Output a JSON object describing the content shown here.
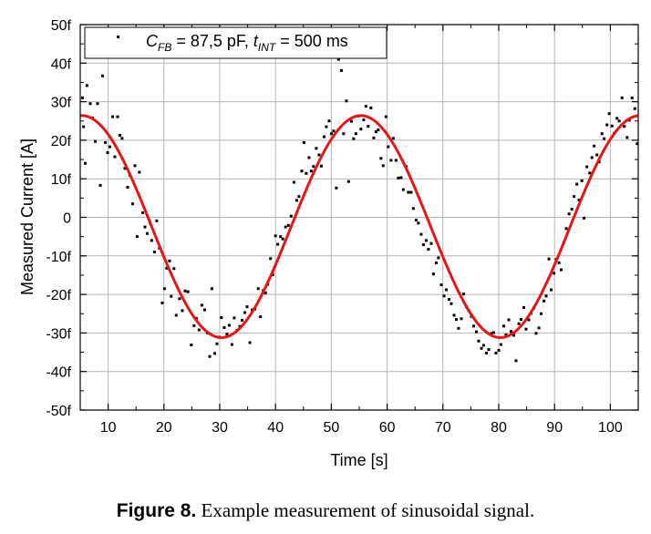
{
  "chart_data": {
    "type": "scatter",
    "xlabel": "Time [s]",
    "ylabel": "Measured Current [A]",
    "xlim": [
      5,
      105
    ],
    "ylim": [
      -50,
      50
    ],
    "x_ticks": [
      10,
      20,
      30,
      40,
      50,
      60,
      70,
      80,
      90,
      100
    ],
    "y_ticks": [
      {
        "value": -50,
        "label": "-50f"
      },
      {
        "value": -40,
        "label": "-40f"
      },
      {
        "value": -30,
        "label": "-30f"
      },
      {
        "value": -20,
        "label": "-20f"
      },
      {
        "value": -10,
        "label": "-10f"
      },
      {
        "value": 0,
        "label": "0"
      },
      {
        "value": 10,
        "label": "10f"
      },
      {
        "value": 20,
        "label": "20f"
      },
      {
        "value": 30,
        "label": "30f"
      },
      {
        "value": 40,
        "label": "40f"
      },
      {
        "value": 50,
        "label": "50f"
      }
    ],
    "grid": true,
    "legend": {
      "placement": "top-left",
      "text": {
        "C": "C",
        "c_sub": "FB",
        "mid": " = 87,5 pF, ",
        "t": "t",
        "t_sub": "INT",
        "end": " = 500 ms"
      }
    },
    "series": [
      {
        "kind": "points",
        "color": "#000000",
        "points": [
          [
            5.4,
            31.0
          ],
          [
            5.6,
            23.5
          ],
          [
            5.9,
            14.0
          ],
          [
            6.2,
            34.2
          ],
          [
            6.8,
            29.5
          ],
          [
            7.2,
            25.8
          ],
          [
            7.7,
            19.7
          ],
          [
            8.1,
            29.5
          ],
          [
            8.6,
            8.3
          ],
          [
            9.0,
            36.7
          ],
          [
            9.5,
            19.4
          ],
          [
            9.9,
            16.8
          ],
          [
            10.3,
            18.3
          ],
          [
            10.8,
            26.1
          ],
          [
            11.2,
            15.7
          ],
          [
            11.7,
            26.1
          ],
          [
            12.1,
            21.3
          ],
          [
            12.5,
            20.5
          ],
          [
            13.0,
            12.7
          ],
          [
            13.5,
            7.8
          ],
          [
            13.9,
            10.9
          ],
          [
            14.4,
            3.5
          ],
          [
            14.8,
            13.4
          ],
          [
            15.2,
            -5.0
          ],
          [
            15.6,
            11.7
          ],
          [
            16.2,
            1.2
          ],
          [
            16.6,
            -2.5
          ],
          [
            17.0,
            -4.2
          ],
          [
            17.5,
            -1.3
          ],
          [
            17.8,
            -6.0
          ],
          [
            18.3,
            -9.0
          ],
          [
            18.7,
            -0.9
          ],
          [
            19.2,
            -8.0
          ],
          [
            19.7,
            -22.2
          ],
          [
            20.1,
            -18.5
          ],
          [
            20.5,
            -13.2
          ],
          [
            21.0,
            -11.3
          ],
          [
            21.3,
            -20.5
          ],
          [
            21.8,
            -13.3
          ],
          [
            22.2,
            -25.4
          ],
          [
            22.8,
            -21.1
          ],
          [
            23.3,
            -24.2
          ],
          [
            23.8,
            -19.1
          ],
          [
            24.3,
            -19.3
          ],
          [
            24.9,
            -33.1
          ],
          [
            25.4,
            -28.1
          ],
          [
            25.8,
            -26.2
          ],
          [
            26.3,
            -29.2
          ],
          [
            26.8,
            -22.8
          ],
          [
            27.3,
            -24.0
          ],
          [
            27.8,
            -30.0
          ],
          [
            28.2,
            -36.1
          ],
          [
            28.6,
            -18.5
          ],
          [
            29.1,
            -35.3
          ],
          [
            29.5,
            -32.8
          ],
          [
            29.9,
            -31.1
          ],
          [
            30.3,
            -26.0
          ],
          [
            30.8,
            -28.6
          ],
          [
            31.3,
            -30.3
          ],
          [
            31.7,
            -28.0
          ],
          [
            32.2,
            -33.0
          ],
          [
            32.6,
            -26.1
          ],
          [
            33.1,
            -29.3
          ],
          [
            33.6,
            -28.3
          ],
          [
            34.0,
            -26.7
          ],
          [
            34.5,
            -24.7
          ],
          [
            34.9,
            -23.2
          ],
          [
            35.4,
            -32.5
          ],
          [
            35.8,
            -24.0
          ],
          [
            36.3,
            -23.8
          ],
          [
            36.9,
            -18.5
          ],
          [
            37.3,
            -25.8
          ],
          [
            37.8,
            -19.0
          ],
          [
            38.2,
            -19.6
          ],
          [
            38.6,
            -17.4
          ],
          [
            39.1,
            -10.7
          ],
          [
            39.5,
            -14.9
          ],
          [
            40.0,
            -4.8
          ],
          [
            40.4,
            -7.0
          ],
          [
            40.9,
            -5.0
          ],
          [
            41.3,
            -5.6
          ],
          [
            41.8,
            -2.5
          ],
          [
            42.3,
            -2.1
          ],
          [
            42.8,
            0.3
          ],
          [
            43.3,
            9.1
          ],
          [
            43.8,
            4.4
          ],
          [
            44.2,
            5.4
          ],
          [
            44.7,
            12.0
          ],
          [
            45.1,
            19.4
          ],
          [
            45.5,
            11.4
          ],
          [
            46.0,
            15.5
          ],
          [
            46.4,
            12.0
          ],
          [
            46.8,
            13.2
          ],
          [
            47.3,
            17.9
          ],
          [
            47.8,
            16.2
          ],
          [
            48.2,
            13.3
          ],
          [
            48.7,
            20.9
          ],
          [
            49.1,
            23.5
          ],
          [
            49.6,
            25.0
          ],
          [
            50.0,
            21.7
          ],
          [
            50.4,
            22.4
          ],
          [
            50.9,
            7.6
          ],
          [
            51.3,
            41.0
          ],
          [
            51.8,
            38.1
          ],
          [
            52.2,
            21.7
          ],
          [
            52.7,
            30.2
          ],
          [
            53.1,
            9.3
          ],
          [
            53.6,
            24.9
          ],
          [
            54.0,
            20.4
          ],
          [
            54.4,
            21.7
          ],
          [
            54.9,
            26.3
          ],
          [
            55.3,
            22.9
          ],
          [
            55.8,
            25.3
          ],
          [
            56.2,
            28.8
          ],
          [
            56.6,
            23.6
          ],
          [
            57.1,
            28.4
          ],
          [
            57.6,
            20.6
          ],
          [
            58.0,
            22.2
          ],
          [
            58.4,
            22.7
          ],
          [
            58.9,
            15.3
          ],
          [
            59.3,
            13.4
          ],
          [
            59.8,
            26.1
          ],
          [
            60.2,
            18.3
          ],
          [
            60.7,
            14.8
          ],
          [
            61.1,
            20.5
          ],
          [
            61.6,
            14.8
          ],
          [
            62.0,
            10.2
          ],
          [
            62.5,
            10.3
          ],
          [
            62.9,
            7.2
          ],
          [
            63.4,
            13.2
          ],
          [
            63.8,
            6.5
          ],
          [
            64.3,
            6.5
          ],
          [
            64.7,
            2.3
          ],
          [
            65.2,
            -0.7
          ],
          [
            65.6,
            -1.5
          ],
          [
            66.1,
            -4.4
          ],
          [
            66.5,
            -7.1
          ],
          [
            67.0,
            -6.0
          ],
          [
            67.4,
            -8.3
          ],
          [
            67.9,
            -6.8
          ],
          [
            68.3,
            -14.7
          ],
          [
            68.8,
            -11.8
          ],
          [
            69.2,
            -10.5
          ],
          [
            69.7,
            -17.5
          ],
          [
            70.2,
            -20.4
          ],
          [
            70.6,
            -18.8
          ],
          [
            71.1,
            -21.3
          ],
          [
            71.5,
            -22.4
          ],
          [
            72.0,
            -25.4
          ],
          [
            72.4,
            -26.5
          ],
          [
            72.8,
            -28.8
          ],
          [
            73.3,
            -26.3
          ],
          [
            73.7,
            -19.9
          ],
          [
            74.2,
            -23.2
          ],
          [
            74.6,
            -24.1
          ],
          [
            75.1,
            -25.7
          ],
          [
            75.5,
            -28.2
          ],
          [
            76.0,
            -29.7
          ],
          [
            76.4,
            -32.1
          ],
          [
            76.9,
            -34.0
          ],
          [
            77.3,
            -33.2
          ],
          [
            77.8,
            -35.2
          ],
          [
            78.2,
            -34.3
          ],
          [
            78.7,
            -30.1
          ],
          [
            79.1,
            -29.9
          ],
          [
            79.5,
            -35.2
          ],
          [
            80.0,
            -34.5
          ],
          [
            80.4,
            -33.0
          ],
          [
            80.9,
            -28.2
          ],
          [
            81.3,
            -30.5
          ],
          [
            81.8,
            -26.6
          ],
          [
            82.2,
            -29.6
          ],
          [
            82.7,
            -30.6
          ],
          [
            83.1,
            -37.2
          ],
          [
            83.6,
            -27.6
          ],
          [
            84.0,
            -26.5
          ],
          [
            84.5,
            -23.4
          ],
          [
            84.9,
            -29.0
          ],
          [
            85.4,
            -26.6
          ],
          [
            85.8,
            -24.9
          ],
          [
            86.3,
            -23.5
          ],
          [
            86.7,
            -30.1
          ],
          [
            87.2,
            -28.7
          ],
          [
            87.6,
            -25.0
          ],
          [
            88.1,
            -21.7
          ],
          [
            88.5,
            -20.4
          ],
          [
            89.0,
            -10.8
          ],
          [
            89.4,
            -18.8
          ],
          [
            89.9,
            -14.5
          ],
          [
            90.3,
            -10.9
          ],
          [
            90.8,
            -11.8
          ],
          [
            91.2,
            -13.6
          ],
          [
            91.7,
            -6.4
          ],
          [
            92.1,
            -2.9
          ],
          [
            92.6,
            0.9
          ],
          [
            93.1,
            2.1
          ],
          [
            93.5,
            5.4
          ],
          [
            94.0,
            8.6
          ],
          [
            94.4,
            4.5
          ],
          [
            94.9,
            9.5
          ],
          [
            95.3,
            -0.2
          ],
          [
            95.8,
            13.1
          ],
          [
            96.3,
            11.5
          ],
          [
            96.7,
            15.5
          ],
          [
            97.1,
            18.5
          ],
          [
            97.6,
            16.2
          ],
          [
            98.0,
            14.4
          ],
          [
            98.5,
            21.7
          ],
          [
            98.9,
            20.4
          ],
          [
            99.4,
            24.0
          ],
          [
            99.8,
            26.9
          ],
          [
            100.3,
            23.7
          ],
          [
            100.7,
            21.8
          ],
          [
            101.2,
            25.7
          ],
          [
            101.6,
            25.0
          ],
          [
            102.1,
            31.0
          ],
          [
            102.5,
            23.6
          ],
          [
            103.0,
            20.7
          ],
          [
            103.4,
            25.2
          ],
          [
            103.9,
            31.0
          ],
          [
            104.4,
            28.2
          ],
          [
            104.8,
            19.1
          ]
        ]
      },
      {
        "kind": "fit",
        "color": "#e4151b",
        "model": "sine",
        "amplitude": 28.8,
        "offset": -2.4,
        "period": 50,
        "peak_x": 5.3
      }
    ]
  },
  "caption": {
    "label": "Figure 8.",
    "text": "Example measurement of sinusoidal signal."
  }
}
